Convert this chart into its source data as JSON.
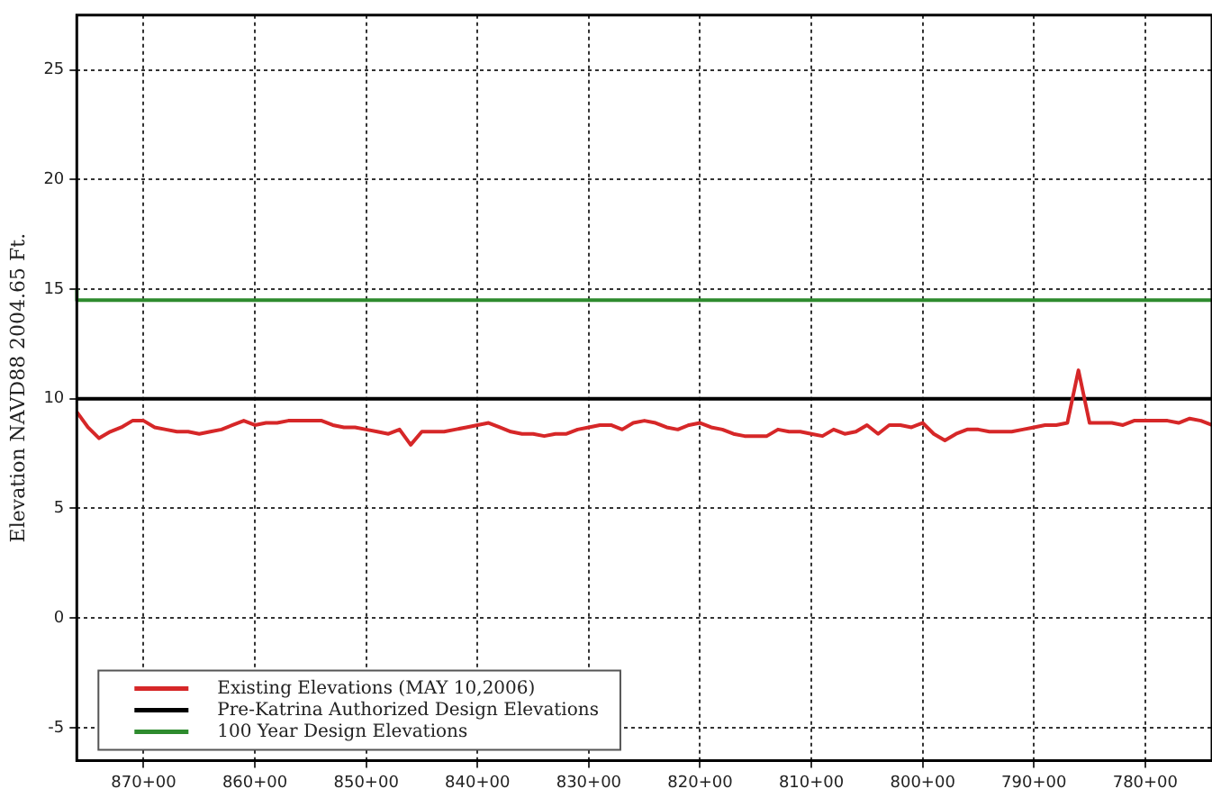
{
  "chart_data": {
    "type": "line",
    "ylabel": "Elevation NAVD88 2004.65 Ft.",
    "categories": [
      null,
      null,
      null,
      null,
      null,
      null,
      "870+00",
      null,
      null,
      null,
      null,
      null,
      null,
      null,
      null,
      null,
      "860+00",
      null,
      null,
      null,
      null,
      null,
      null,
      null,
      null,
      null,
      "850+00",
      null,
      null,
      null,
      null,
      null,
      null,
      null,
      null,
      null,
      "840+00",
      null,
      null,
      null,
      null,
      null,
      null,
      null,
      null,
      null,
      "830+00",
      null,
      null,
      null,
      null,
      null,
      null,
      null,
      null,
      null,
      "820+00",
      null,
      null,
      null,
      null,
      null,
      null,
      null,
      null,
      null,
      "810+00",
      null,
      null,
      null,
      null,
      null,
      null,
      null,
      null,
      null,
      "800+00",
      null,
      null,
      null,
      null,
      null,
      null,
      null,
      null,
      null,
      "790+00",
      null,
      null,
      null,
      null,
      null,
      null,
      null,
      null,
      null,
      "780+00",
      null,
      null,
      null,
      null,
      null,
      null
    ],
    "ylim": [
      -6.5,
      27.5
    ],
    "yticks": [
      -5,
      0,
      5,
      10,
      15,
      20,
      25
    ],
    "grid": true,
    "legend": "bottom left",
    "marker": "none",
    "line_style": "solid",
    "series": [
      {
        "name": "Existing Elevations (MAY 10,2006)",
        "color": "#d62728",
        "values": [
          9.4,
          8.7,
          8.2,
          8.5,
          8.7,
          9.0,
          9.0,
          8.7,
          8.6,
          8.5,
          8.5,
          8.4,
          8.5,
          8.6,
          8.8,
          9.0,
          8.8,
          8.9,
          8.9,
          9.0,
          9.0,
          9.0,
          9.0,
          8.8,
          8.7,
          8.7,
          8.6,
          8.5,
          8.4,
          8.6,
          7.9,
          8.5,
          8.5,
          8.5,
          8.6,
          8.7,
          8.8,
          8.9,
          8.7,
          8.5,
          8.4,
          8.4,
          8.3,
          8.4,
          8.4,
          8.6,
          8.7,
          8.8,
          8.8,
          8.6,
          8.9,
          9.0,
          8.9,
          8.7,
          8.6,
          8.8,
          8.9,
          8.7,
          8.6,
          8.4,
          8.3,
          8.3,
          8.3,
          8.6,
          8.5,
          8.5,
          8.4,
          8.3,
          8.6,
          8.4,
          8.5,
          8.8,
          8.4,
          8.8,
          8.8,
          8.7,
          8.9,
          8.4,
          8.1,
          8.4,
          8.6,
          8.6,
          8.5,
          8.5,
          8.5,
          8.6,
          8.7,
          8.8,
          8.8,
          8.9,
          11.3,
          8.9,
          8.9,
          8.9,
          8.8,
          9.0,
          9.0,
          9.0,
          9.0,
          8.9,
          9.1,
          9.0,
          8.8
        ]
      },
      {
        "name": "Pre-Katrina Authorized Design Elevations",
        "color": "#000000",
        "values": [
          10,
          10,
          10,
          10,
          10,
          10,
          10,
          10,
          10,
          10,
          10,
          10,
          10,
          10,
          10,
          10,
          10,
          10,
          10,
          10,
          10,
          10,
          10,
          10,
          10,
          10,
          10,
          10,
          10,
          10,
          10,
          10,
          10,
          10,
          10,
          10,
          10,
          10,
          10,
          10,
          10,
          10,
          10,
          10,
          10,
          10,
          10,
          10,
          10,
          10,
          10,
          10,
          10,
          10,
          10,
          10,
          10,
          10,
          10,
          10,
          10,
          10,
          10,
          10,
          10,
          10,
          10,
          10,
          10,
          10,
          10,
          10,
          10,
          10,
          10,
          10,
          10,
          10,
          10,
          10,
          10,
          10,
          10,
          10,
          10,
          10,
          10,
          10,
          10,
          10,
          10,
          10,
          10,
          10,
          10,
          10,
          10,
          10,
          10,
          10,
          10,
          10,
          10
        ]
      },
      {
        "name": "100 Year Design Elevations",
        "type": "step",
        "color": "#2e8b2e",
        "values": [
          15,
          14.5,
          14.5,
          14.5,
          14.5,
          14.5,
          14.5,
          14.5,
          14.5,
          14.5,
          14.5,
          14.5,
          14.5,
          14.5,
          14.5,
          14.5,
          14.5,
          14.5,
          14.5,
          14.5,
          14.5,
          14.5,
          14.5,
          14.5,
          14.5,
          14.5,
          14.5,
          14.5,
          14.5,
          14.5,
          14.5,
          14.5,
          14.5,
          14.5,
          14.5,
          14.5,
          14.5,
          14.5,
          14.5,
          14.5,
          14.5,
          14.5,
          14.5,
          14.5,
          14.5,
          14.5,
          14.5,
          14.5,
          14.5,
          14.5,
          14.5,
          14.5,
          14.5,
          14.5,
          14.5,
          14.5,
          14.5,
          14.5,
          14.5,
          14.5,
          14.5,
          14.5,
          14.5,
          14.5,
          14.5,
          14.5,
          14.5,
          14.5,
          14.5,
          14.5,
          14.5,
          14.5,
          14.5,
          14.5,
          14.5,
          14.5,
          14.5,
          14.5,
          14.5,
          14.5,
          14.5,
          14.5,
          14.5,
          14.5,
          14.5,
          14.5,
          14.5,
          14.5,
          14.5,
          14.5,
          14.5,
          14.5,
          14.5,
          14.5,
          14.5,
          14.5,
          14.5,
          14.5,
          14.5,
          14.5,
          14.5,
          14.5,
          14.5
        ]
      }
    ]
  }
}
